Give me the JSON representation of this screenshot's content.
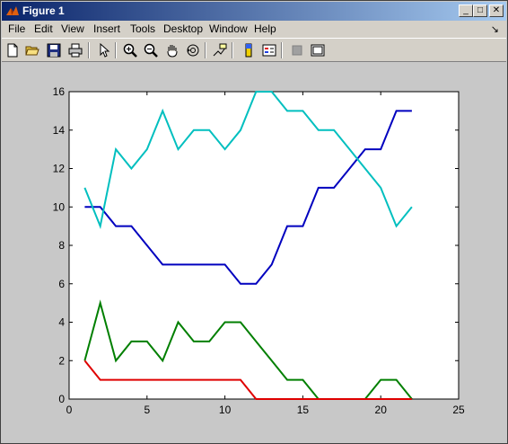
{
  "window": {
    "title": "Figure 1"
  },
  "title_buttons": {
    "minimize": "_",
    "maximize": "□",
    "close": "✕"
  },
  "menu": [
    "File",
    "Edit",
    "View",
    "Insert",
    "Tools",
    "Desktop",
    "Window",
    "Help"
  ],
  "dock_arrow": "↘",
  "toolbar_icons": [
    "new-figure-icon",
    "open-file-icon",
    "save-icon",
    "print-icon",
    "pointer-icon",
    "zoom-in-icon",
    "zoom-out-icon",
    "pan-hand-icon",
    "rotate-3d-icon",
    "data-cursor-icon",
    "colorbar-icon",
    "legend-icon",
    "hide-plot-tools-icon",
    "show-plot-tools-icon"
  ],
  "chart_data": {
    "type": "line",
    "title": "",
    "xlabel": "",
    "ylabel": "",
    "xlim": [
      0,
      25
    ],
    "ylim": [
      0,
      16
    ],
    "xticks": [
      0,
      5,
      10,
      15,
      20,
      25
    ],
    "yticks": [
      0,
      2,
      4,
      6,
      8,
      10,
      12,
      14,
      16
    ],
    "grid": false,
    "x": [
      1,
      2,
      3,
      4,
      5,
      6,
      7,
      8,
      9,
      10,
      11,
      12,
      13,
      14,
      15,
      16,
      17,
      18,
      19,
      20,
      21,
      22
    ],
    "series": [
      {
        "color": "#0000bf",
        "values": [
          10,
          10,
          9,
          9,
          8,
          7,
          7,
          7,
          7,
          7,
          6,
          6,
          7,
          9,
          9,
          11,
          11,
          12,
          13,
          13,
          15,
          15
        ]
      },
      {
        "color": "#00bfbf",
        "values": [
          11,
          9,
          13,
          12,
          13,
          15,
          13,
          14,
          14,
          13,
          14,
          16,
          16,
          15,
          15,
          14,
          14,
          13,
          12,
          11,
          9,
          10
        ]
      },
      {
        "color": "#007f00",
        "values": [
          2,
          5,
          2,
          3,
          3,
          2,
          4,
          3,
          3,
          4,
          4,
          3,
          2,
          1,
          1,
          0,
          0,
          0,
          0,
          1,
          1,
          0
        ]
      },
      {
        "color": "#df0000",
        "values": [
          2,
          1,
          1,
          1,
          1,
          1,
          1,
          1,
          1,
          1,
          1,
          0,
          0,
          0,
          0,
          0,
          0,
          0,
          0,
          0,
          0,
          0
        ]
      }
    ]
  }
}
